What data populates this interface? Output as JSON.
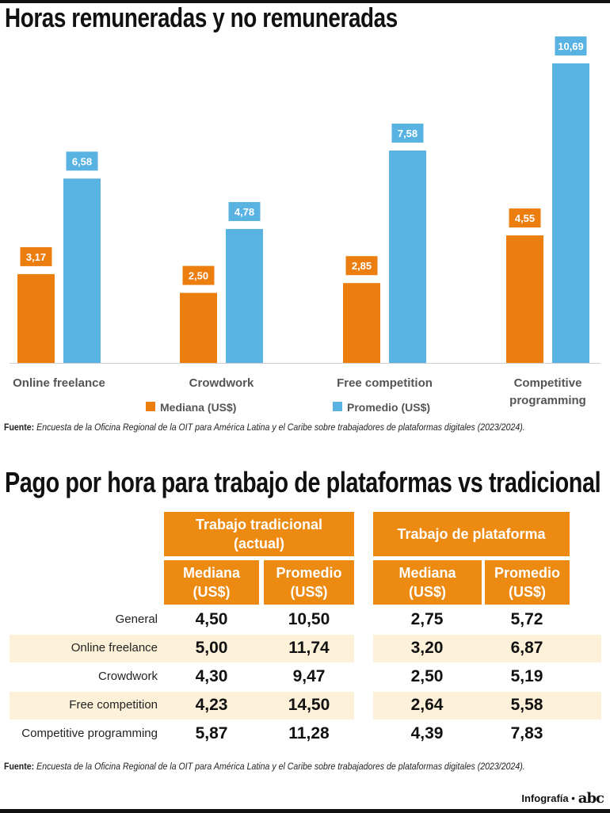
{
  "chart_data": {
    "type": "bar",
    "title": "Horas remuneradas y no remuneradas",
    "categories": [
      "Online freelance",
      "Crowdwork",
      "Free competition",
      "Competitive programming"
    ],
    "category_lines": [
      [
        "Online freelance"
      ],
      [
        "Crowdwork"
      ],
      [
        "Free competition"
      ],
      [
        "Competitive",
        "programming"
      ]
    ],
    "series": [
      {
        "name": "Mediana (US$)",
        "color": "#ec7d0f",
        "values": [
          3.17,
          2.5,
          2.85,
          4.55
        ],
        "labels": [
          "3,17",
          "2,50",
          "2,85",
          "4,55"
        ]
      },
      {
        "name": "Promedio (US$)",
        "color": "#58b2e2",
        "values": [
          6.58,
          4.78,
          7.58,
          10.69
        ],
        "labels": [
          "6,58",
          "4,78",
          "7,58",
          "10,69"
        ]
      }
    ],
    "ylim": [
      0,
      10.69
    ],
    "legend": "bottom"
  },
  "source1": {
    "label": "Fuente:",
    "text": "Encuesta de la Oficina Regional de la OIT para América Latina y el Caribe sobre trabajadores de plataformas digitales (2023/2024)."
  },
  "table": {
    "title": "Pago por hora para trabajo de plataformas vs tradicional",
    "group1": "Trabajo tradicional\n(actual)",
    "group2": "Trabajo de plataforma",
    "col_headers": [
      "Mediana\n(US$)",
      "Promedio\n(US$)",
      "Mediana\n(US$)",
      "Promedio\n(US$)"
    ],
    "rows": [
      {
        "label": "General",
        "values": [
          "4,50",
          "10,50",
          "2,75",
          "5,72"
        ]
      },
      {
        "label": "Online freelance",
        "values": [
          "5,00",
          "11,74",
          "3,20",
          "6,87"
        ]
      },
      {
        "label": "Crowdwork",
        "values": [
          "4,30",
          "9,47",
          "2,50",
          "5,19"
        ]
      },
      {
        "label": "Free competition",
        "values": [
          "4,23",
          "14,50",
          "2,64",
          "5,58"
        ]
      },
      {
        "label": "Competitive programming",
        "values": [
          "5,87",
          "11,28",
          "4,39",
          "7,83"
        ]
      }
    ]
  },
  "source2": {
    "label": "Fuente:",
    "text": "Encuesta de la Oficina Regional de la OIT para América Latina y el Caribe sobre trabajadores de plataformas digitales (2023/2024)."
  },
  "footer": {
    "credit": "Infografía •",
    "logo": "abc"
  }
}
